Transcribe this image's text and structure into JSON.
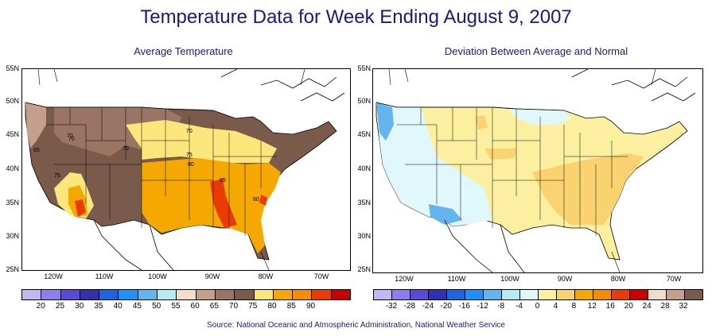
{
  "title": "Temperature Data for Week Ending August 9, 2007",
  "left_map": {
    "subtitle": "Average Temperature",
    "contour_labels": [
      "70",
      "70",
      "65",
      "70",
      "75",
      "80",
      "85",
      "80",
      "75",
      "70"
    ],
    "legend_labels": [
      "20",
      "25",
      "30",
      "35",
      "40",
      "45",
      "50",
      "55",
      "60",
      "65",
      "70",
      "75",
      "80",
      "85",
      "90"
    ],
    "legend_colors": [
      "#c4b6f2",
      "#8c7ef0",
      "#5a4ad8",
      "#3030b0",
      "#1c64e0",
      "#1e90ff",
      "#64b4f0",
      "#b4ecf4",
      "#f2dccc",
      "#c4a08c",
      "#9a7464",
      "#7a5a4a",
      "#fae67a",
      "#f4a800",
      "#f88c00",
      "#ea3c00",
      "#c80000"
    ]
  },
  "right_map": {
    "subtitle": "Deviation Between Average and Normal",
    "legend_labels": [
      "-32",
      "-28",
      "-24",
      "-20",
      "-16",
      "-12",
      "-8",
      "-4",
      "0",
      "4",
      "8",
      "12",
      "16",
      "20",
      "24",
      "28",
      "32"
    ],
    "legend_colors": [
      "#c4b6f2",
      "#8c7ef0",
      "#5a4ad8",
      "#3030b0",
      "#1c64e0",
      "#1e90ff",
      "#64b4f0",
      "#b4ecf4",
      "#e0f8fc",
      "#fcf0a0",
      "#fad270",
      "#f4a800",
      "#f88c00",
      "#ea3c00",
      "#c80000",
      "#f2dccc",
      "#c4a08c",
      "#7a5a4a"
    ]
  },
  "lat_labels": [
    "55N",
    "50N",
    "45N",
    "40N",
    "35N",
    "30N",
    "25N"
  ],
  "lon_labels": [
    "120W",
    "110W",
    "100W",
    "90W",
    "80W",
    "70W"
  ],
  "source": "Source:  National Oceanic and Atmospheric Administration, National Weather Service"
}
